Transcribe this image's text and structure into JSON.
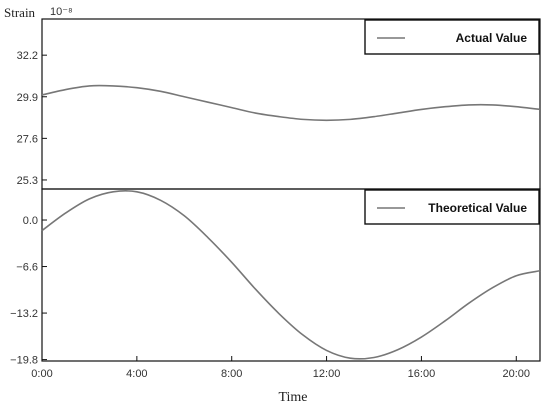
{
  "chart_data": {
    "type": "line",
    "ylabel": "Strain",
    "yunit": "10⁻⁸",
    "xlabel": "Time",
    "x_ticks": [
      "0:00",
      "4:00",
      "8:00",
      "12:00",
      "16:00",
      "20:00"
    ],
    "xlim": [
      0,
      21
    ],
    "grid": false,
    "panels": [
      {
        "legend_position": "top-right",
        "y_ticks": [
          "32.2",
          "29.9",
          "27.6",
          "25.3"
        ],
        "ylim": [
          24.8,
          34.2
        ],
        "series": [
          {
            "name": "Actual Value",
            "color": "#777777",
            "x": [
              0,
              1,
              2,
              3,
              4,
              5,
              6,
              7,
              8,
              9,
              10,
              11,
              12,
              13,
              14,
              15,
              16,
              17,
              18,
              19,
              20,
              21
            ],
            "y": [
              30.0,
              30.3,
              30.5,
              30.5,
              30.4,
              30.2,
              29.9,
              29.6,
              29.3,
              29.0,
              28.8,
              28.65,
              28.6,
              28.65,
              28.8,
              29.0,
              29.2,
              29.35,
              29.45,
              29.45,
              29.35,
              29.2
            ]
          }
        ]
      },
      {
        "legend_position": "top-right",
        "y_ticks": [
          "0.0",
          "-6.6",
          "-13.2",
          "-19.8"
        ],
        "ylim": [
          -20.0,
          4.4
        ],
        "series": [
          {
            "name": "Theoretical Value",
            "color": "#777777",
            "x": [
              0,
              1,
              2,
              3,
              4,
              5,
              6,
              7,
              8,
              9,
              10,
              11,
              12,
              13,
              14,
              15,
              16,
              17,
              18,
              19,
              20,
              21
            ],
            "y": [
              -1.5,
              1.0,
              3.0,
              4.0,
              4.0,
              2.8,
              0.6,
              -2.5,
              -6.0,
              -9.8,
              -13.3,
              -16.3,
              -18.5,
              -19.6,
              -19.5,
              -18.4,
              -16.6,
              -14.3,
              -11.8,
              -9.6,
              -7.9,
              -7.2
            ]
          }
        ]
      }
    ]
  }
}
